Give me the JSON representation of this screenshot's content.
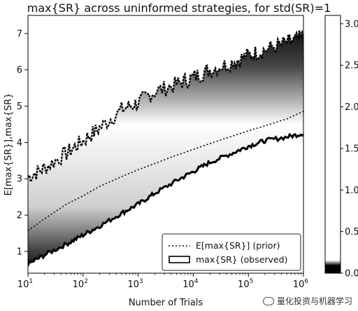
{
  "chart_data": {
    "type": "scatter",
    "title": "max{SR} across uninformed strategies, for std(SR)=1",
    "xlabel": "Number of Trials",
    "ylabel": "E[max{SR}],max{SR}",
    "x_scale": "log",
    "xlim": [
      10,
      1000000
    ],
    "ylim": [
      0.4,
      7.5
    ],
    "x_ticks": [
      {
        "value": 10,
        "base": "10",
        "exp": "1"
      },
      {
        "value": 100,
        "base": "10",
        "exp": "2"
      },
      {
        "value": 1000,
        "base": "10",
        "exp": "3"
      },
      {
        "value": 10000,
        "base": "10",
        "exp": "4"
      },
      {
        "value": 100000,
        "base": "10",
        "exp": "5"
      },
      {
        "value": 1000000,
        "base": "10",
        "exp": "6"
      }
    ],
    "y_ticks": [
      "1",
      "2",
      "3",
      "4",
      "5",
      "6",
      "7"
    ],
    "series": [
      {
        "name": "E[max{SR}] (prior)",
        "style": "dotted",
        "x": [
          10,
          20,
          50,
          100,
          200,
          500,
          1000,
          2000,
          5000,
          10000,
          20000,
          50000,
          100000,
          200000,
          500000,
          1000000
        ],
        "y": [
          1.57,
          1.9,
          2.3,
          2.53,
          2.79,
          3.06,
          3.25,
          3.42,
          3.65,
          3.81,
          3.97,
          4.17,
          4.32,
          4.46,
          4.65,
          4.86
        ]
      },
      {
        "name": "max{SR} (observed)",
        "style": "band",
        "x": [
          10,
          20,
          50,
          100,
          200,
          500,
          1000,
          2000,
          5000,
          10000,
          20000,
          50000,
          100000,
          200000,
          500000,
          1000000
        ],
        "y_low": [
          0.65,
          0.9,
          1.2,
          1.45,
          1.7,
          2.05,
          2.3,
          2.6,
          2.95,
          3.2,
          3.45,
          3.7,
          3.9,
          4.05,
          4.15,
          4.25
        ],
        "y_high": [
          3.05,
          3.3,
          3.7,
          4.05,
          4.4,
          4.9,
          5.1,
          5.4,
          5.6,
          5.8,
          6.0,
          6.2,
          6.4,
          6.55,
          6.75,
          6.9
        ]
      }
    ],
    "legend": {
      "placement": "lower-right"
    },
    "colorbar": {
      "ticks": [
        "0.0",
        "0.5",
        "1.0",
        "1.5",
        "2.0",
        "2.5",
        "3.0"
      ],
      "range": [
        0,
        3.1
      ]
    },
    "grid": false
  },
  "watermark": {
    "text": "量化投资与机器学习",
    "icon": "wechat-icon"
  }
}
